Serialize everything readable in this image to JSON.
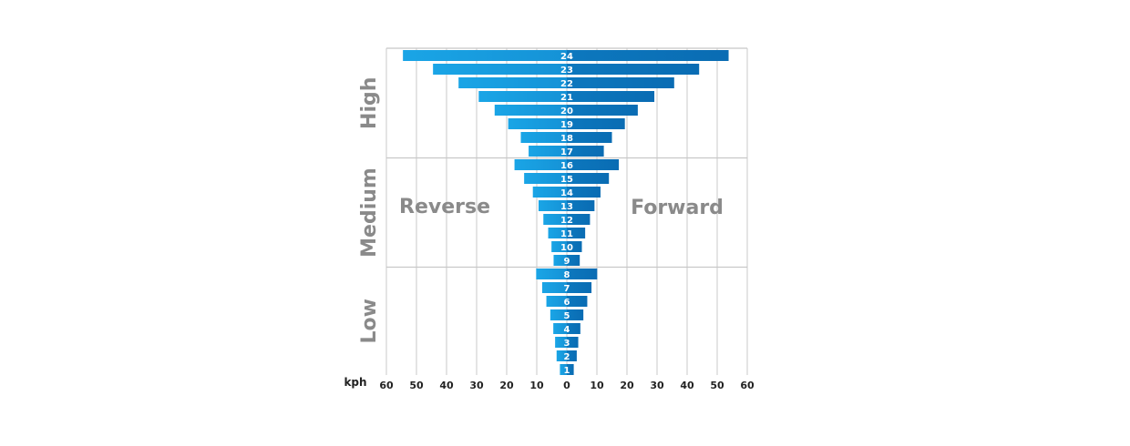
{
  "chart_data": {
    "type": "bar",
    "orientation": "horizontal-butterfly",
    "x_unit": "kph",
    "xlim": [
      -60,
      60
    ],
    "x_ticks": [
      60,
      50,
      40,
      30,
      20,
      10,
      0,
      10,
      20,
      30,
      40,
      50,
      60
    ],
    "grid": true,
    "gears": [
      "1",
      "2",
      "3",
      "4",
      "5",
      "6",
      "7",
      "8",
      "9",
      "10",
      "11",
      "12",
      "13",
      "14",
      "15",
      "16",
      "17",
      "18",
      "19",
      "20",
      "21",
      "22",
      "23",
      "24"
    ],
    "series": [
      {
        "name": "Reverse",
        "values": [
          2.3,
          3.4,
          3.9,
          4.5,
          5.5,
          6.8,
          8.2,
          10.2,
          4.4,
          5.1,
          6.2,
          7.8,
          9.4,
          11.3,
          14.2,
          17.4,
          12.7,
          15.3,
          19.5,
          24.0,
          29.3,
          36.0,
          44.5,
          54.5
        ],
        "color_light": "#1aa5e6",
        "color_dark": "#0a6cb3"
      },
      {
        "name": "Forward",
        "values": [
          2.3,
          3.3,
          3.8,
          4.5,
          5.5,
          6.8,
          8.2,
          10.1,
          4.3,
          5.0,
          6.1,
          7.7,
          9.2,
          11.2,
          14.0,
          17.3,
          12.3,
          15.0,
          19.3,
          23.6,
          29.1,
          35.7,
          44.0,
          53.8
        ],
        "color_light": "#1aa5e6",
        "color_dark": "#0a6cb3"
      }
    ],
    "bands": [
      "Low",
      "Medium",
      "High"
    ],
    "band_gear_ranges": [
      [
        1,
        8
      ],
      [
        9,
        16
      ],
      [
        17,
        24
      ]
    ],
    "annotations": [
      "Reverse",
      "Forward"
    ],
    "colors": {
      "grid": "#c8c8c8",
      "label": "#8a8a8a",
      "tick": "#222222",
      "bar_text": "#ffffff"
    }
  }
}
